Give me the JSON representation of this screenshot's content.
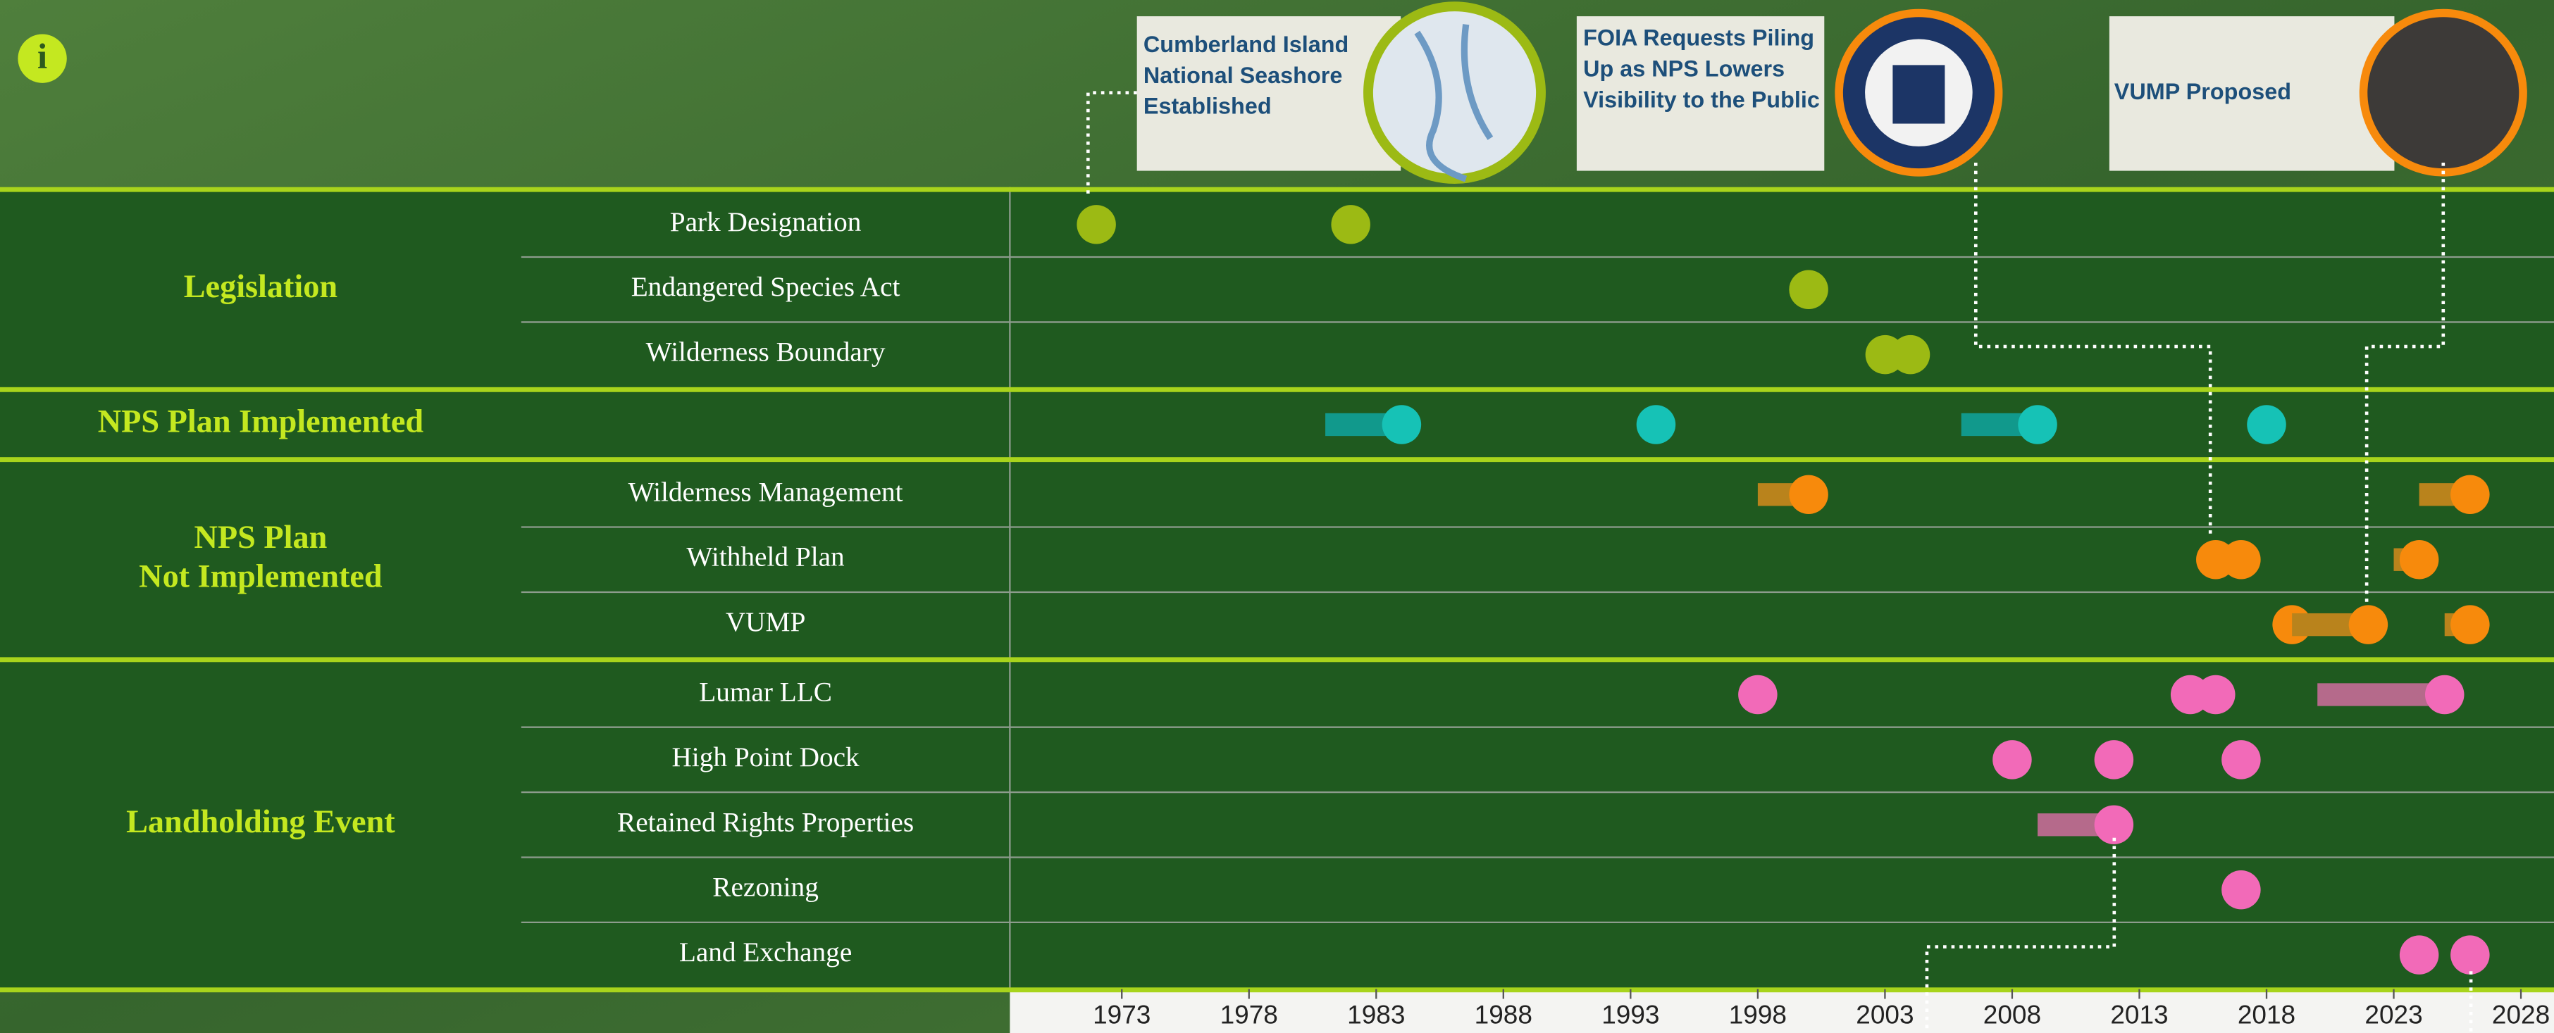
{
  "info_icon": "i",
  "chart_data": {
    "type": "timeline",
    "xlim": [
      1968.6,
      2029.3
    ],
    "xticks": [
      1973,
      1978,
      1983,
      1988,
      1993,
      1998,
      2003,
      2008,
      2013,
      2018,
      2023,
      2028
    ],
    "groups": [
      {
        "name": "Legislation",
        "color": "#9cba14",
        "bar_color": "#7a9410",
        "rows": [
          {
            "name": "Park Designation",
            "events": [
              {
                "year": 1972
              },
              {
                "year": 1982
              }
            ]
          },
          {
            "name": "Endangered Species Act",
            "events": [
              {
                "year": 2000
              }
            ]
          },
          {
            "name": "Wilderness Boundary",
            "events": [
              {
                "year": 2003
              },
              {
                "year": 2004
              }
            ]
          }
        ]
      },
      {
        "name": "NPS Plan Implemented",
        "color": "#16c2b6",
        "bar_color": "#11998c",
        "rows": [
          {
            "events": [
              {
                "start": 1981,
                "end": 1984
              },
              {
                "year": 1994
              },
              {
                "start": 2006,
                "end": 2009
              },
              {
                "year": 2018
              }
            ]
          }
        ]
      },
      {
        "name": "NPS Plan Not Implemented",
        "color": "#f78a0c",
        "bar_color": "#b9831c",
        "rows": [
          {
            "name": "Wilderness Management",
            "events": [
              {
                "start": 1998,
                "end": 2000
              },
              {
                "start": 2024,
                "end": 2026
              }
            ]
          },
          {
            "name": "Withheld Plan",
            "events": [
              {
                "year": 2016
              },
              {
                "year": 2017
              },
              {
                "start": 2023,
                "end": 2024
              }
            ]
          },
          {
            "name": "VUMP",
            "events": [
              {
                "year": 2019
              },
              {
                "start": 2019,
                "end": 2022
              },
              {
                "start": 2025,
                "end": 2026
              }
            ]
          }
        ]
      },
      {
        "name": "Landholding Event",
        "color": "#f26ab8",
        "bar_color": "#b56a8b",
        "rows": [
          {
            "name": "Lumar LLC",
            "events": [
              {
                "year": 1998
              },
              {
                "year": 2015
              },
              {
                "year": 2016
              },
              {
                "start": 2020,
                "end": 2025
              }
            ]
          },
          {
            "name": "High Point Dock",
            "events": [
              {
                "year": 2008
              },
              {
                "year": 2012
              },
              {
                "year": 2017
              }
            ]
          },
          {
            "name": "Retained Rights Properties",
            "events": [
              {
                "start": 2009,
                "end": 2012
              }
            ]
          },
          {
            "name": "Rezoning",
            "events": [
              {
                "year": 2017
              }
            ]
          },
          {
            "name": "Land Exchange",
            "events": [
              {
                "year": 2024
              },
              {
                "year": 2026
              }
            ]
          }
        ]
      }
    ],
    "annotations": [
      {
        "text": "Cumberland Island National Seashore Established"
      },
      {
        "text": "FOIA Requests Piling Up as NPS Lowers Visibility to the Public"
      },
      {
        "text": "VUMP Proposed"
      }
    ]
  }
}
